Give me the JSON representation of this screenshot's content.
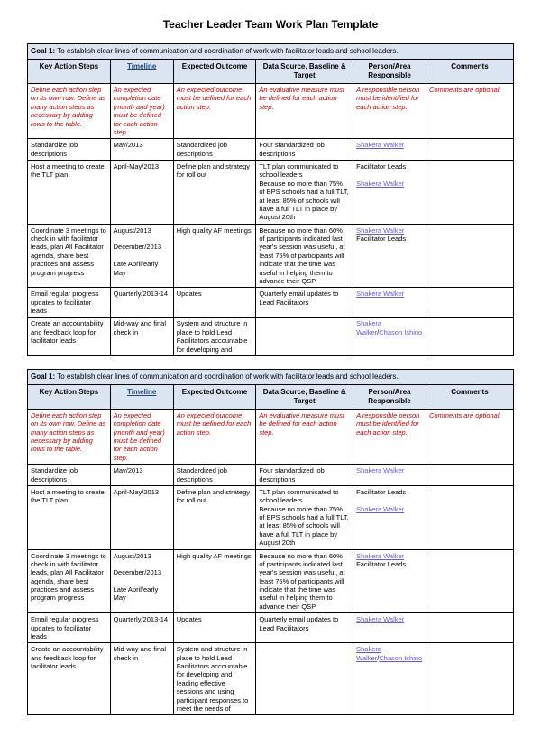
{
  "title": "Teacher Leader Team Work Plan Template",
  "goalLabel": "Goal 1:",
  "goalText": "To establish clear lines of communication and coordination of work with facilitator leads and school leaders.",
  "headers": {
    "c1": "Key Action Steps",
    "c2": "Timeline",
    "c3": "Expected Outcome",
    "c4": "Data Source, Baseline & Target",
    "c5": "Person/Area Responsible",
    "c6": "Comments"
  },
  "instr": {
    "c1": "Define each action step on its own row. Define as many action steps as necessary by adding rows to the table.",
    "c2": "An expected completion date (month and year) must be defined for each action step.",
    "c3": "An expected outcome must be defined for each action step.",
    "c4": "An evaluative measure must be defined for each action step.",
    "c5": "A responsible person must be identified for each action step.",
    "c6": "Comments are optional."
  },
  "rows": [
    {
      "c1": "Standardize job descriptions",
      "c2": "May/2013",
      "c3": "Standardized job descriptions",
      "c4": "Four standardized job descriptions",
      "c5": "Shakera Walker",
      "c6": ""
    },
    {
      "c1": "Host a meeting to create the TLT plan",
      "c2": "April-May/2013",
      "c3": "Define plan and strategy for roll out",
      "c4": "TLT plan communicated to school leaders\nBecause no more than 75% of BPS schools had a full TLT, at least 85% of schools will have a full TLT in place by August 20th",
      "c5a": "Facilitator Leads",
      "c5b": "Shakera Walker",
      "c6": ""
    },
    {
      "c1": "Coordinate 3 meetings to check in with facilitator leads, plan All Facilitator agenda, share best practices and assess program progress",
      "c2": "August/2013\n\nDecember/2013\n\nLate April/early May",
      "c3": "High quality AF meetings",
      "c4": "Because no more than 60% of participants indicated last year's session was useful, at least 75% of participants will indicate that the time was useful in helping them to advance their QSP",
      "c5a": "Shakera Walker",
      "c5b": "Facilitator Leads",
      "c6": ""
    },
    {
      "c1": "Email regular progress updates to facilitator leads",
      "c2": "Quarterly/2013-14",
      "c3": "Updates",
      "c4": "Quarterly email updates to Lead Facilitators",
      "c5": "Shakera Walker",
      "c6": ""
    },
    {
      "c1": "Create an accountability and feedback loop for facilitator leads",
      "c2": "Mid-way and final check in",
      "c3a": "System and structure in place to hold Lead Facilitators accountable for developing and",
      "c3b": "System and structure in place to hold Lead Facilitators accountable for developing and leading effective sessions and using participant responses to meet the needs of",
      "c4": "",
      "c5a": "Shakera",
      "c5b": "Walker",
      "c5c": "Chason Ishino",
      "c6": ""
    }
  ]
}
